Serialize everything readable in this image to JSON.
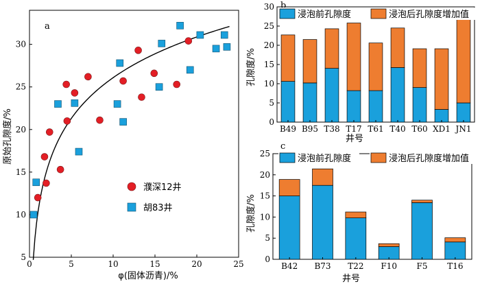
{
  "colors": {
    "red": "#e31e25",
    "blue": "#1aa0dc",
    "orange": "#ee7d30",
    "axis": "#000000"
  },
  "chart_data": [
    {
      "id": "a",
      "type": "scatter",
      "panel_label": "a",
      "xlabel": "φ(固体沥青)/%",
      "ylabel": "原始孔隙度/%",
      "xlim": [
        0,
        25
      ],
      "ylim": [
        5,
        34
      ],
      "xticks": [
        0,
        5,
        10,
        15,
        20,
        25
      ],
      "yticks": [
        5,
        10,
        15,
        20,
        25,
        30
      ],
      "legend_position": "lower-right",
      "series": [
        {
          "name": "濮深12井",
          "marker": "circle",
          "color": "#e31e25",
          "points": [
            [
              1.0,
              12.0
            ],
            [
              1.8,
              16.8
            ],
            [
              2.0,
              13.7
            ],
            [
              2.4,
              19.7
            ],
            [
              3.7,
              15.3
            ],
            [
              4.4,
              25.3
            ],
            [
              4.5,
              21.0
            ],
            [
              5.4,
              24.3
            ],
            [
              7.0,
              26.2
            ],
            [
              8.4,
              21.1
            ],
            [
              11.2,
              25.7
            ],
            [
              13.0,
              29.3
            ],
            [
              13.4,
              23.8
            ],
            [
              14.9,
              26.6
            ],
            [
              17.6,
              25.3
            ],
            [
              19.0,
              30.4
            ]
          ]
        },
        {
          "name": "胡83井",
          "marker": "square",
          "color": "#1aa0dc",
          "points": [
            [
              0.5,
              10.0
            ],
            [
              0.8,
              13.8
            ],
            [
              3.4,
              23.0
            ],
            [
              5.4,
              23.1
            ],
            [
              5.9,
              17.4
            ],
            [
              10.5,
              23.0
            ],
            [
              10.8,
              27.8
            ],
            [
              11.2,
              20.9
            ],
            [
              15.5,
              25.0
            ],
            [
              15.8,
              30.1
            ],
            [
              18.0,
              32.2
            ],
            [
              19.2,
              27.0
            ],
            [
              20.4,
              31.1
            ],
            [
              22.3,
              29.5
            ],
            [
              23.3,
              31.1
            ],
            [
              23.6,
              29.7
            ]
          ]
        }
      ],
      "fit_curve": {
        "type": "logarithmic",
        "a": 10.2,
        "b": 6.9,
        "x_range": [
          0.45,
          23.9
        ]
      }
    },
    {
      "id": "b",
      "type": "bar",
      "stacked": true,
      "panel_label": "b",
      "xlabel": "井号",
      "ylabel": "孔隙度/%",
      "ylim": [
        0,
        30
      ],
      "yticks": [
        0,
        5,
        10,
        15,
        20,
        25,
        30
      ],
      "legend_position": "top",
      "categories": [
        "B49",
        "B95",
        "T38",
        "T17",
        "T61",
        "T40",
        "T60",
        "XD1",
        "JN1"
      ],
      "series": [
        {
          "name": "浸泡前孔隙度",
          "color": "#1aa0dc",
          "values": [
            10.6,
            10.2,
            14.0,
            8.2,
            8.2,
            14.2,
            9.0,
            3.3,
            5.0
          ]
        },
        {
          "name": "浸泡后孔隙度增加值",
          "color": "#ee7d30",
          "values": [
            12.1,
            11.3,
            10.3,
            17.6,
            12.4,
            10.3,
            10.1,
            15.8,
            21.7
          ]
        }
      ]
    },
    {
      "id": "c",
      "type": "bar",
      "stacked": true,
      "panel_label": "c",
      "xlabel": "井号",
      "ylabel": "孔隙度/%",
      "ylim": [
        0,
        25
      ],
      "yticks": [
        0,
        5,
        10,
        15,
        20,
        25
      ],
      "legend_position": "top",
      "categories": [
        "B42",
        "B73",
        "T22",
        "F10",
        "F5",
        "T16"
      ],
      "series": [
        {
          "name": "浸泡前孔隙度",
          "color": "#1aa0dc",
          "values": [
            15.0,
            17.5,
            9.8,
            3.0,
            13.4,
            4.1
          ]
        },
        {
          "name": "浸泡后孔隙度增加值",
          "color": "#ee7d30",
          "values": [
            3.9,
            3.9,
            1.4,
            0.7,
            0.6,
            1.0
          ]
        }
      ]
    }
  ]
}
